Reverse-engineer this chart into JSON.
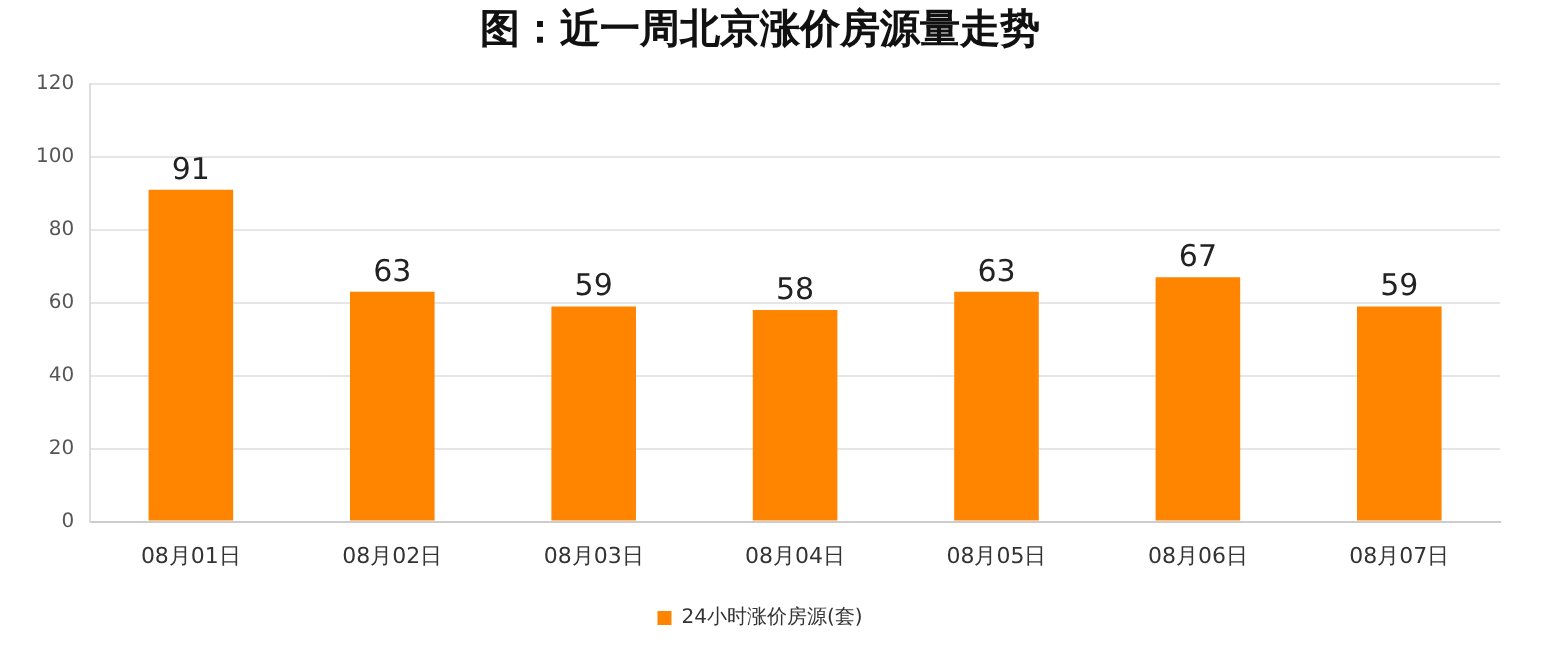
{
  "chart_data": {
    "type": "bar",
    "title": "图：近一周北京涨价房源量走势",
    "categories": [
      "08月01日",
      "08月02日",
      "08月03日",
      "08月04日",
      "08月05日",
      "08月06日",
      "08月07日"
    ],
    "series": [
      {
        "name": "24小时涨价房源(套)",
        "color": "#ff8400",
        "values": [
          91,
          63,
          59,
          58,
          63,
          67,
          59
        ]
      }
    ],
    "ylim": [
      0,
      120
    ],
    "yticks": [
      0,
      20,
      40,
      60,
      80,
      100,
      120
    ],
    "grid": "y",
    "legend": "bottom",
    "data_labels": true
  }
}
